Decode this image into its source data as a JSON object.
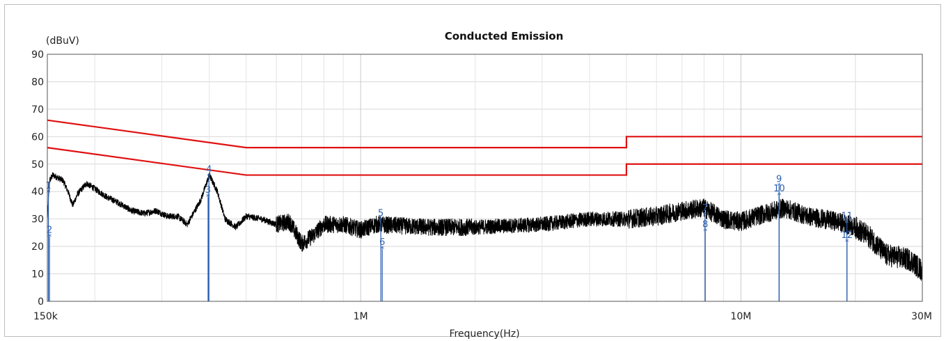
{
  "chart_data": {
    "type": "line",
    "title": "Conducted Emission",
    "ylabel": "(dBuV)",
    "xlabel": "Frequency(Hz)",
    "x_scale": "log",
    "xlim": [
      150000,
      30000000
    ],
    "ylim": [
      0,
      90
    ],
    "y_ticks": [
      0,
      10,
      20,
      30,
      40,
      50,
      60,
      70,
      80,
      90
    ],
    "x_ticks": [
      {
        "value": 150000,
        "label": "150k"
      },
      {
        "value": 1000000,
        "label": "1M"
      },
      {
        "value": 10000000,
        "label": "10M"
      },
      {
        "value": 30000000,
        "label": "30M"
      }
    ],
    "grid": true,
    "colors": {
      "limit": "#e01010",
      "trace": "#000000",
      "marker": "#2a5db0",
      "grid": "#d8d8d8"
    },
    "limit_lines": [
      {
        "points": [
          [
            150000,
            66
          ],
          [
            500000,
            56
          ],
          [
            5000000,
            56
          ],
          [
            5000000,
            60
          ],
          [
            30000000,
            60
          ]
        ]
      },
      {
        "points": [
          [
            150000,
            56
          ],
          [
            500000,
            46
          ],
          [
            5000000,
            46
          ],
          [
            5000000,
            50
          ],
          [
            30000000,
            50
          ]
        ]
      }
    ],
    "trace": {
      "anchors": [
        [
          150000,
          30
        ],
        [
          152000,
          44
        ],
        [
          155000,
          46
        ],
        [
          160000,
          45
        ],
        [
          165000,
          44
        ],
        [
          170000,
          40
        ],
        [
          175000,
          35
        ],
        [
          180000,
          39
        ],
        [
          190000,
          43
        ],
        [
          200000,
          41
        ],
        [
          215000,
          38
        ],
        [
          230000,
          36
        ],
        [
          250000,
          33
        ],
        [
          270000,
          32
        ],
        [
          290000,
          33
        ],
        [
          310000,
          31
        ],
        [
          330000,
          31
        ],
        [
          350000,
          28
        ],
        [
          380000,
          37
        ],
        [
          400000,
          46
        ],
        [
          420000,
          40
        ],
        [
          440000,
          30
        ],
        [
          470000,
          27
        ],
        [
          500000,
          31
        ],
        [
          550000,
          30
        ],
        [
          600000,
          28
        ],
        [
          650000,
          29
        ],
        [
          700000,
          21
        ],
        [
          750000,
          24
        ],
        [
          800000,
          28
        ],
        [
          900000,
          28
        ],
        [
          1000000,
          26
        ],
        [
          1100000,
          28
        ],
        [
          1500000,
          27
        ],
        [
          2000000,
          27
        ],
        [
          3000000,
          28
        ],
        [
          4000000,
          30
        ],
        [
          5000000,
          30
        ],
        [
          6000000,
          31
        ],
        [
          7000000,
          33
        ],
        [
          8000000,
          34
        ],
        [
          9000000,
          30
        ],
        [
          10000000,
          29
        ],
        [
          11000000,
          31
        ],
        [
          13000000,
          34
        ],
        [
          15000000,
          31
        ],
        [
          18000000,
          29
        ],
        [
          20000000,
          27
        ],
        [
          22000000,
          23
        ],
        [
          24000000,
          17
        ],
        [
          26000000,
          16
        ],
        [
          28000000,
          15
        ],
        [
          30000000,
          11
        ]
      ]
    },
    "markers": [
      {
        "labels": [
          "1"
        ],
        "freq": 151000,
        "value": 39.5
      },
      {
        "labels": [
          "2"
        ],
        "freq": 152000,
        "value": 23.5
      },
      {
        "labels": [
          "3"
        ],
        "freq": 397000,
        "value": 38.0
      },
      {
        "labels": [
          "4"
        ],
        "freq": 399000,
        "value": 45.5
      },
      {
        "labels": [
          "5"
        ],
        "freq": 1130000,
        "value": 29.5
      },
      {
        "labels": [
          "6"
        ],
        "freq": 1140000,
        "value": 19.0
      },
      {
        "labels": [
          "7"
        ],
        "freq": 8050000,
        "value": 31.5
      },
      {
        "labels": [
          "8"
        ],
        "freq": 8060000,
        "value": 25.5
      },
      {
        "labels": [
          "9"
        ],
        "freq": 12600000,
        "value": 42.0
      },
      {
        "labels": [
          "10"
        ],
        "freq": 12610000,
        "value": 38.5
      },
      {
        "labels": [
          "11"
        ],
        "freq": 19000000,
        "value": 28.5
      },
      {
        "labels": [
          "12"
        ],
        "freq": 19010000,
        "value": 21.5
      }
    ]
  }
}
